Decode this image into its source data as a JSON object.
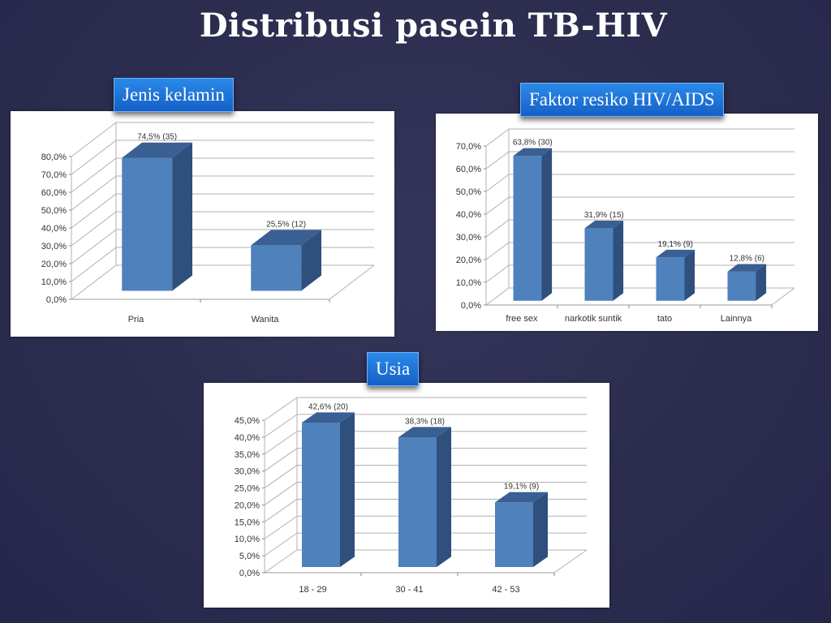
{
  "slide": {
    "title": "Distribusi pasein TB-HIV",
    "background_color": "#2c2d4e",
    "bar_front_color": "#4f81bd",
    "bar_top_color": "#3a5f93",
    "bar_side_color": "#2f4f7d"
  },
  "badges": {
    "gender": "Jenis kelamin",
    "risk": "Faktor resiko HIV/AIDS",
    "age": "Usia"
  },
  "chart_data": [
    {
      "type": "bar",
      "title": "Jenis kelamin",
      "categories": [
        "Pria",
        "Wanita"
      ],
      "values": [
        74.5,
        25.5
      ],
      "data_labels": [
        "74,5% (35)",
        "25,5%  (12)"
      ],
      "counts": [
        35,
        12
      ],
      "yticks": [
        "0,0%",
        "10,0%",
        "20,0%",
        "30,0%",
        "40,0%",
        "50,0%",
        "60,0%",
        "70,0%",
        "80,0%"
      ],
      "ylim": [
        0,
        80
      ],
      "xlabel": "",
      "ylabel": "",
      "grid": true,
      "style": "3d-column"
    },
    {
      "type": "bar",
      "title": "Faktor resiko HIV/AIDS",
      "categories": [
        "free sex",
        "narkotik suntik",
        "tato",
        "Lainnya"
      ],
      "values": [
        63.8,
        31.9,
        19.1,
        12.8
      ],
      "data_labels": [
        "63,8% (30)",
        "31,9% (15)",
        "19,1% (9)",
        "12,8% (6)"
      ],
      "counts": [
        30,
        15,
        9,
        6
      ],
      "yticks": [
        "0,0%",
        "10,0%",
        "20,0%",
        "30,0%",
        "40,0%",
        "50,0%",
        "60,0%",
        "70,0%"
      ],
      "ylim": [
        0,
        70
      ],
      "xlabel": "",
      "ylabel": "",
      "grid": true,
      "style": "3d-column"
    },
    {
      "type": "bar",
      "title": "Usia",
      "categories": [
        "18 - 29",
        "30 - 41",
        "42 - 53"
      ],
      "values": [
        42.6,
        38.3,
        19.1
      ],
      "data_labels": [
        "42,6% (20)",
        "38,3% (18)",
        "19,1% (9)"
      ],
      "counts": [
        20,
        18,
        9
      ],
      "yticks": [
        "0,0%",
        "5,0%",
        "10,0%",
        "15,0%",
        "20,0%",
        "25,0%",
        "30,0%",
        "35,0%",
        "40,0%",
        "45,0%"
      ],
      "ylim": [
        0,
        45
      ],
      "xlabel": "",
      "ylabel": "",
      "grid": true,
      "style": "3d-column"
    }
  ]
}
